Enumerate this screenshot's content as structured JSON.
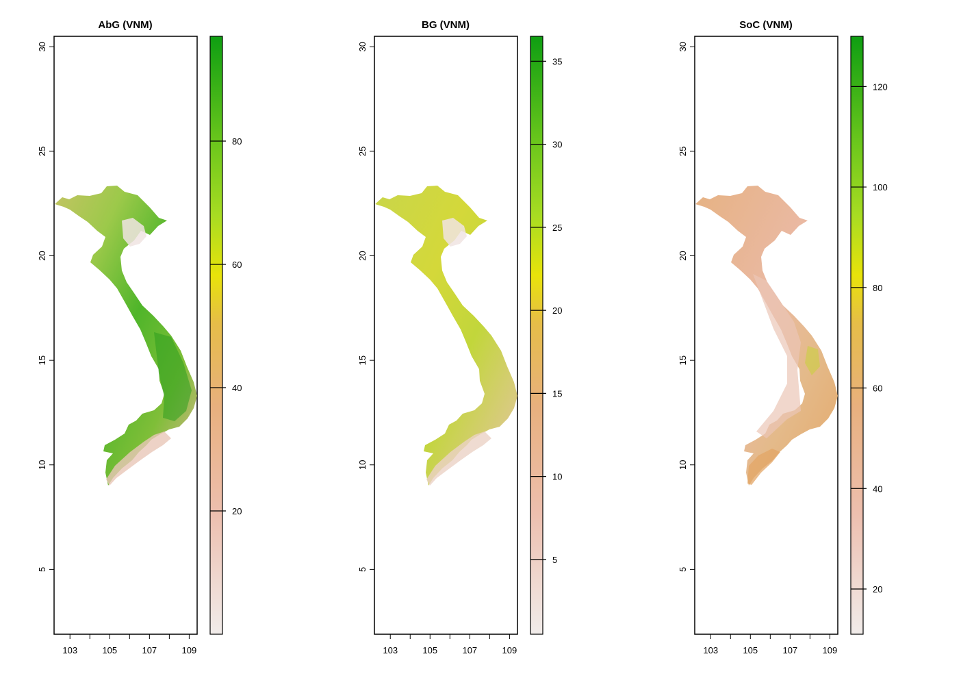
{
  "panels": [
    {
      "id": "abg",
      "title": "AbG (VNM)",
      "x_ticks": [
        "103",
        "105",
        "107",
        "109"
      ],
      "y_ticks": [
        "30",
        "25",
        "20",
        "15",
        "10",
        "5"
      ],
      "legend_ticks": [
        "80",
        "60",
        "40",
        "20"
      ],
      "legend_range": [
        0,
        97
      ]
    },
    {
      "id": "bg",
      "title": "BG (VNM)",
      "x_ticks": [
        "103",
        "105",
        "107",
        "109"
      ],
      "y_ticks": [
        "30",
        "25",
        "20",
        "15",
        "10",
        "5"
      ],
      "legend_ticks": [
        "35",
        "30",
        "25",
        "20",
        "15",
        "10",
        "5"
      ],
      "legend_range": [
        0.5,
        36.5
      ]
    },
    {
      "id": "soc",
      "title": "SoC (VNM)",
      "x_ticks": [
        "103",
        "105",
        "107",
        "109"
      ],
      "y_ticks": [
        "30",
        "25",
        "20",
        "15",
        "10",
        "5"
      ],
      "legend_ticks": [
        "120",
        "100",
        "80",
        "60",
        "40",
        "20"
      ],
      "legend_range": [
        11,
        130
      ]
    }
  ],
  "colors": {
    "low": "#f1ecea",
    "pink": "#edbfaf",
    "tan": "#e8b07e",
    "orange": "#e6bd48",
    "yellow": "#e8e30a",
    "yellow_green": "#a8dc22",
    "green": "#6cc71c",
    "high": "#0e9e12"
  },
  "x_range": [
    102.2,
    109.4
  ],
  "y_range": [
    1.9,
    30.5
  ]
}
